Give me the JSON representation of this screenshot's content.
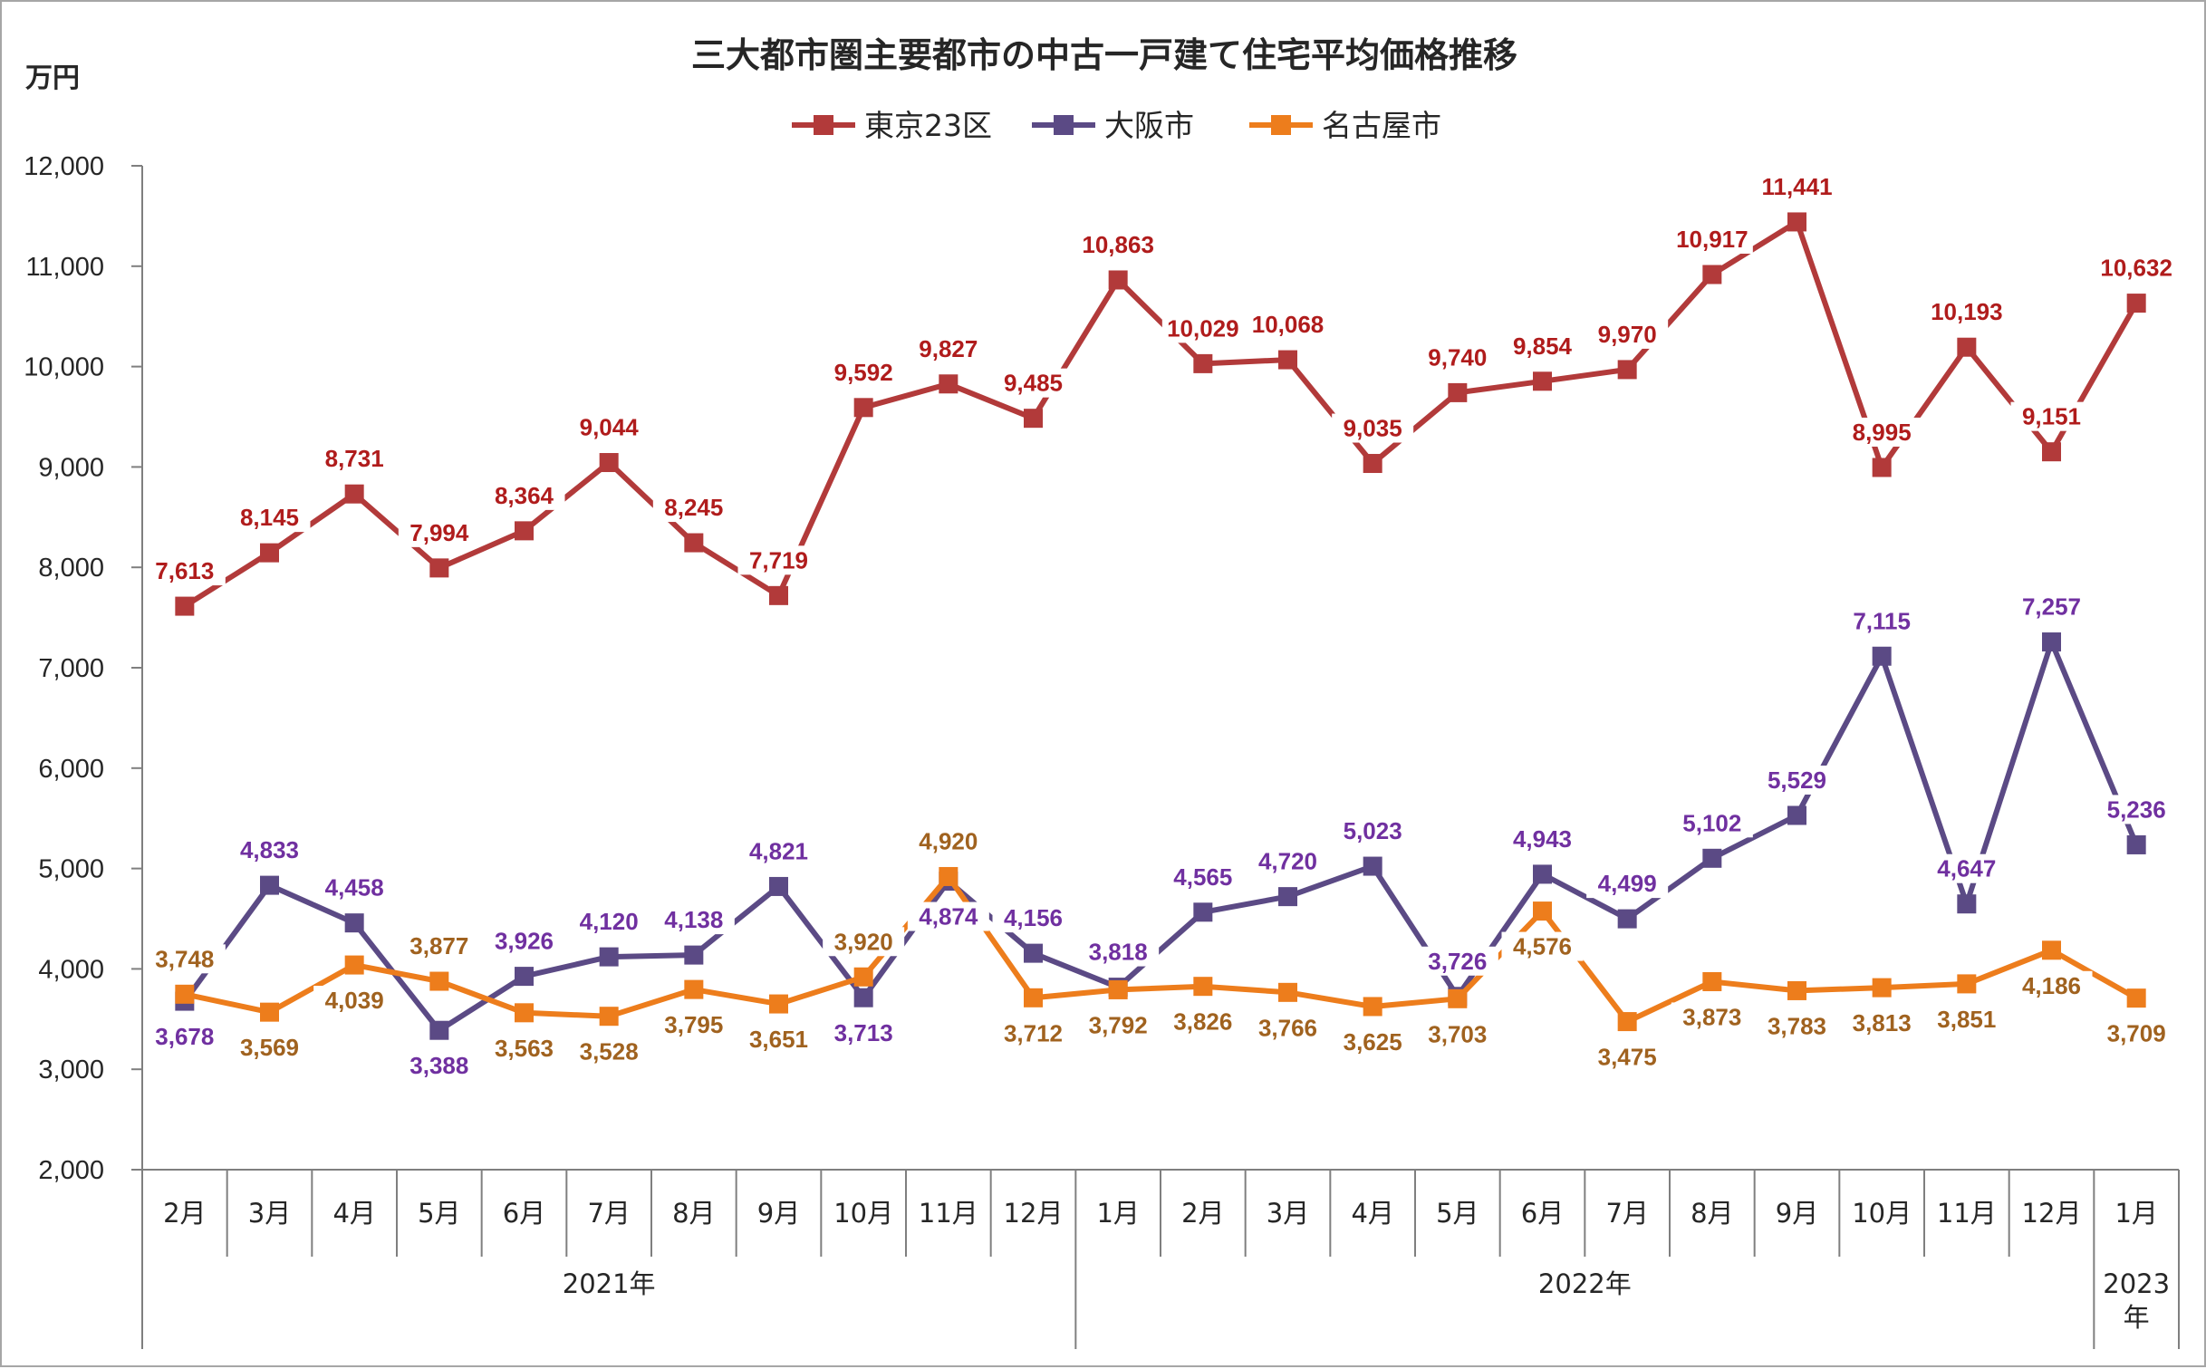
{
  "chart_data": {
    "type": "line",
    "title": "三大都市圏主要都市の中古一戸建て住宅平均価格推移",
    "ylabel": "万円",
    "ylim": [
      2000,
      12000
    ],
    "yticks": [
      "2,000",
      "3,000",
      "4,000",
      "5,000",
      "6,000",
      "7,000",
      "8,000",
      "9,000",
      "10,000",
      "11,000",
      "12,000"
    ],
    "categories": [
      "2月",
      "3月",
      "4月",
      "5月",
      "6月",
      "7月",
      "8月",
      "9月",
      "10月",
      "11月",
      "12月",
      "1月",
      "2月",
      "3月",
      "4月",
      "5月",
      "6月",
      "7月",
      "8月",
      "9月",
      "10月",
      "11月",
      "12月",
      "1月"
    ],
    "year_groups": [
      {
        "label": "2021年",
        "count": 11
      },
      {
        "label": "2022年",
        "count": 12
      },
      {
        "label": "2023\n年",
        "count": 1
      }
    ],
    "legend_position": "top",
    "series": [
      {
        "name": "東京23区",
        "color": "#b23a3a",
        "label_color": "#b01c1c",
        "values": [
          7613,
          8145,
          8731,
          7994,
          8364,
          9044,
          8245,
          7719,
          9592,
          9827,
          9485,
          10863,
          10029,
          10068,
          9035,
          9740,
          9854,
          9970,
          10917,
          11441,
          8995,
          10193,
          9151,
          10632
        ],
        "labels": [
          "7,613",
          "8,145",
          "8,731",
          "7,994",
          "8,364",
          "9,044",
          "8,245",
          "7,719",
          "9,592",
          "9,827",
          "9,485",
          "10,863",
          "10,029",
          "10,068",
          "9,035",
          "9,740",
          "9,854",
          "9,970",
          "10,917",
          "11,441",
          "8,995",
          "10,193",
          "9,151",
          "10,632"
        ]
      },
      {
        "name": "大阪市",
        "color": "#5b4a85",
        "label_color": "#7030a0",
        "values": [
          3678,
          4833,
          4458,
          3388,
          3926,
          4120,
          4138,
          4821,
          3713,
          4874,
          4156,
          3818,
          4565,
          4720,
          5023,
          3726,
          4943,
          4499,
          5102,
          5529,
          7115,
          4647,
          7257,
          5236
        ],
        "labels": [
          "3,678",
          "4,833",
          "4,458",
          "3,388",
          "3,926",
          "4,120",
          "4,138",
          "4,821",
          "3,713",
          "4,874",
          "4,156",
          "3,818",
          "4,565",
          "4,720",
          "5,023",
          "3,726",
          "4,943",
          "4,499",
          "5,102",
          "5,529",
          "7,115",
          "4,647",
          "7,257",
          "5,236"
        ]
      },
      {
        "name": "名古屋市",
        "color": "#ed7d1c",
        "label_color": "#a0621f",
        "values": [
          3748,
          3569,
          4039,
          3877,
          3563,
          3528,
          3795,
          3651,
          3920,
          4920,
          3712,
          3792,
          3826,
          3766,
          3625,
          3703,
          4576,
          3475,
          3873,
          3783,
          3813,
          3851,
          4186,
          3709
        ],
        "labels": [
          "3,748",
          "3,569",
          "4,039",
          "3,877",
          "3,563",
          "3,528",
          "3,795",
          "3,651",
          "3,920",
          "4,920",
          "3,712",
          "3,792",
          "3,826",
          "3,766",
          "3,625",
          "3,703",
          "4,576",
          "3,475",
          "3,873",
          "3,783",
          "3,813",
          "3,851",
          "4,186",
          "3,709"
        ]
      }
    ]
  }
}
